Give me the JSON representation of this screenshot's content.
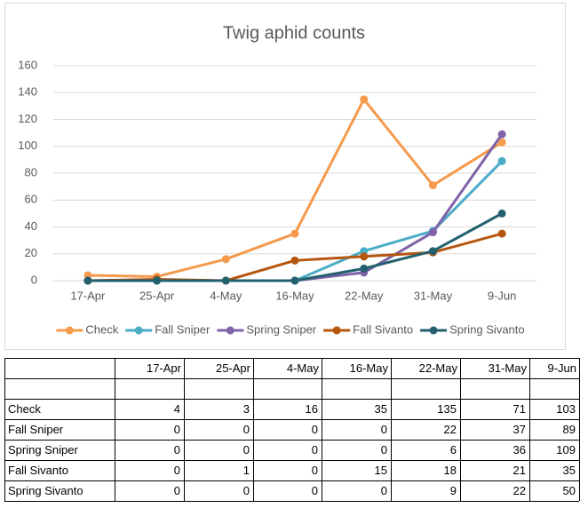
{
  "chart_data": {
    "type": "line",
    "title": "Twig aphid counts",
    "categories": [
      "17-Apr",
      "25-Apr",
      "4-May",
      "16-May",
      "22-May",
      "31-May",
      "9-Jun"
    ],
    "series": [
      {
        "name": "Check",
        "color": "#f59a4c",
        "values": [
          4,
          3,
          16,
          35,
          135,
          71,
          103
        ]
      },
      {
        "name": "Fall Sniper",
        "color": "#4bacc6",
        "values": [
          0,
          0,
          0,
          0,
          22,
          37,
          89
        ]
      },
      {
        "name": "Spring Sniper",
        "color": "#7f62a8",
        "values": [
          0,
          0,
          0,
          0,
          6,
          36,
          109
        ]
      },
      {
        "name": "Fall Sivanto",
        "color": "#b5560f",
        "values": [
          0,
          1,
          0,
          15,
          18,
          21,
          35
        ]
      },
      {
        "name": "Spring Sivanto",
        "color": "#24616f",
        "values": [
          0,
          0,
          0,
          0,
          9,
          22,
          50
        ]
      }
    ],
    "ylim": [
      0,
      160
    ],
    "yticks": [
      0,
      20,
      40,
      60,
      80,
      100,
      120,
      140,
      160
    ],
    "grid": true,
    "legend": "bottom"
  }
}
